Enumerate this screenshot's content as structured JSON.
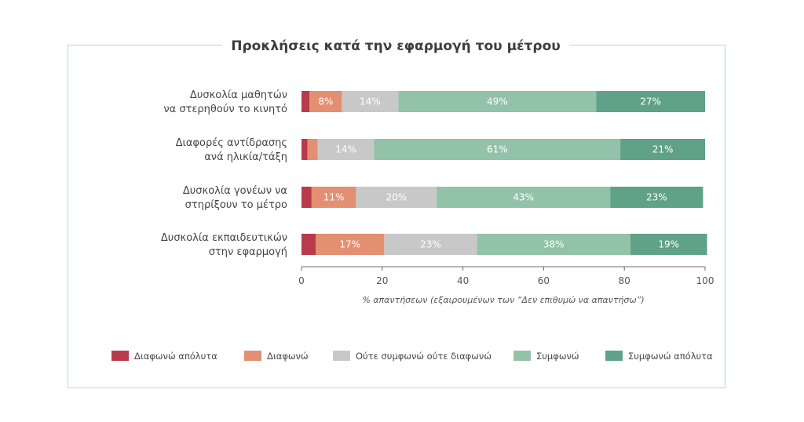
{
  "chart_data": {
    "type": "bar",
    "orientation": "horizontal-stacked",
    "title": "Προκλήσεις κατά την εφαρμογή του μέτρου",
    "xlabel": "% απαντήσεων (εξαιρουμένων των “Δεν επιθυμώ να απαντήσω”)",
    "ylabel": "",
    "xlim": [
      0,
      100
    ],
    "xticks": [
      "0",
      "20",
      "40",
      "60",
      "80",
      "100"
    ],
    "legend_position": "bottom",
    "categories": [
      [
        "Δυσκολία μαθητών",
        "να στερηθούν το κινητό"
      ],
      [
        "Διαφορές αντίδρασης",
        "ανά ηλικία/τάξη"
      ],
      [
        "Δυσκολία γονέων να",
        "στηρίξουν το μέτρο"
      ],
      [
        "Δυσκολία εκπαιδευτικών",
        "στην εφαρμογή"
      ]
    ],
    "series": [
      {
        "name": "Διαφωνώ απόλυτα",
        "color": "#b83a4b",
        "values": [
          2,
          1.5,
          2.5,
          3.5
        ],
        "labels": [
          "",
          "",
          "",
          ""
        ]
      },
      {
        "name": "Διαφωνώ",
        "color": "#e38f72",
        "values": [
          8,
          2.5,
          11,
          17
        ],
        "labels": [
          "8%",
          "",
          "11%",
          "17%"
        ]
      },
      {
        "name": "Ούτε συμφωνώ ούτε διαφωνώ",
        "color": "#c8c8c8",
        "values": [
          14,
          14,
          20,
          23
        ],
        "labels": [
          "14%",
          "14%",
          "20%",
          "23%"
        ]
      },
      {
        "name": "Συμφωνώ",
        "color": "#92c2a7",
        "values": [
          49,
          61,
          43,
          38
        ],
        "labels": [
          "49%",
          "61%",
          "43%",
          "38%"
        ]
      },
      {
        "name": "Συμφωνώ απόλυτα",
        "color": "#5fa287",
        "values": [
          27,
          21,
          23,
          19
        ],
        "labels": [
          "27%",
          "21%",
          "23%",
          "19%"
        ]
      }
    ]
  }
}
